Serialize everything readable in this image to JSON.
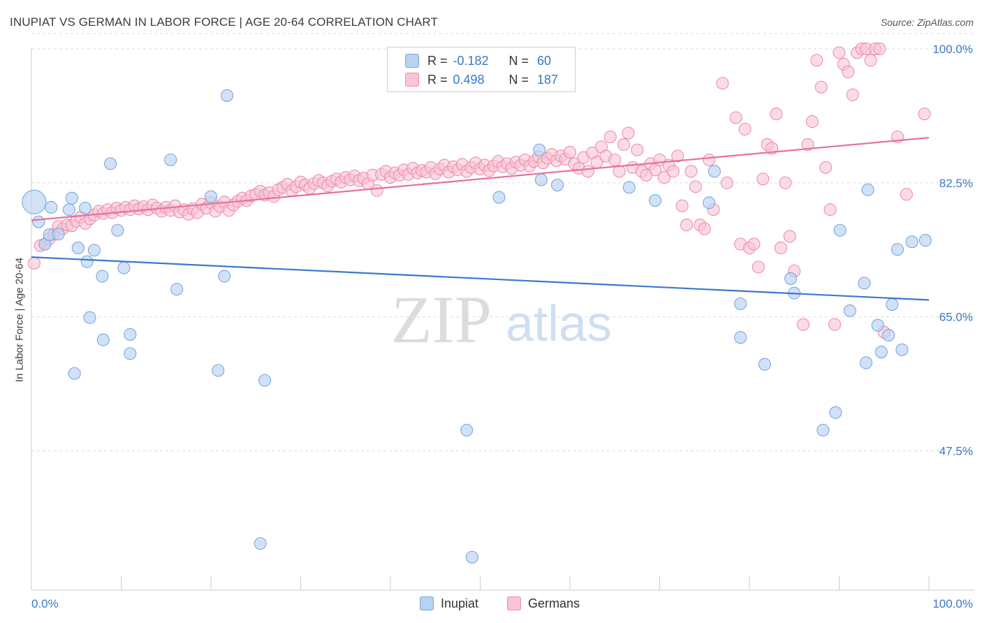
{
  "title": "INUPIAT VS GERMAN IN LABOR FORCE | AGE 20-64 CORRELATION CHART",
  "source": "Source: ZipAtlas.com",
  "watermark": {
    "zip": "ZIP",
    "atlas": "atlas"
  },
  "colors": {
    "inupiat_fill": "#b8d2f3",
    "inupiat_stroke": "#7aa7e0",
    "inupiat_line": "#3a78d0",
    "german_fill": "#f9c4d3",
    "german_stroke": "#ec8fab",
    "german_line": "#e8709a",
    "tick_label": "#3a78c8",
    "grid": "#dcdcdc"
  },
  "stats": {
    "inupiat": {
      "r_label": "R =",
      "r_value": "-0.182",
      "n_label": "N =",
      "n_value": "60"
    },
    "german": {
      "r_label": "R =",
      "r_value": "0.498",
      "n_label": "N =",
      "n_value": "187"
    }
  },
  "legend": {
    "inupiat": "Inupiat",
    "german": "Germans"
  },
  "chart_data": {
    "type": "scatter",
    "title": "INUPIAT VS GERMAN IN LABOR FORCE | AGE 20-64 CORRELATION CHART",
    "xlabel": "",
    "ylabel": "In Labor Force | Age 20-64",
    "xlim": [
      0,
      100
    ],
    "ylim": [
      29.3,
      102
    ],
    "x_tick_labels": [
      "0.0%",
      "100.0%"
    ],
    "y_ticks": [
      {
        "value": 100.0,
        "label": "100.0%"
      },
      {
        "value": 82.5,
        "label": "82.5%"
      },
      {
        "value": 65.0,
        "label": "65.0%"
      },
      {
        "value": 47.5,
        "label": "47.5%"
      }
    ],
    "grid": "horizontal dashed",
    "legend_position": "bottom-center",
    "series": [
      {
        "name": "Inupiat",
        "trend": {
          "x0": 0,
          "y0": 72.8,
          "x1": 100,
          "y1": 67.2
        },
        "points": [
          [
            0.3,
            80.0,
            2.2
          ],
          [
            0.8,
            77.4,
            1
          ],
          [
            1.5,
            74.5,
            1
          ],
          [
            2.0,
            75.7,
            1
          ],
          [
            2.2,
            79.3,
            1
          ],
          [
            3.0,
            75.8,
            1
          ],
          [
            4.2,
            79.0,
            1
          ],
          [
            4.5,
            80.5,
            1
          ],
          [
            4.8,
            57.6,
            1
          ],
          [
            5.2,
            74.0,
            1
          ],
          [
            6.0,
            79.2,
            1
          ],
          [
            6.2,
            72.2,
            1
          ],
          [
            6.5,
            64.9,
            1
          ],
          [
            7.0,
            73.7,
            1
          ],
          [
            7.9,
            70.3,
            1
          ],
          [
            8.0,
            62.0,
            1
          ],
          [
            8.8,
            85.0,
            1
          ],
          [
            9.6,
            76.3,
            1
          ],
          [
            10.3,
            71.4,
            1
          ],
          [
            11.0,
            62.7,
            1
          ],
          [
            11.0,
            60.2,
            1
          ],
          [
            15.5,
            85.5,
            1
          ],
          [
            16.2,
            68.6,
            1
          ],
          [
            20.0,
            80.7,
            1
          ],
          [
            20.8,
            58.0,
            1
          ],
          [
            21.5,
            70.3,
            1
          ],
          [
            21.8,
            93.9,
            1
          ],
          [
            25.5,
            35.4,
            1
          ],
          [
            26.0,
            56.7,
            1
          ],
          [
            48.5,
            50.2,
            1
          ],
          [
            49.1,
            33.6,
            1
          ],
          [
            52.1,
            80.6,
            1
          ],
          [
            56.6,
            86.8,
            1
          ],
          [
            56.8,
            82.9,
            1
          ],
          [
            58.6,
            82.2,
            1
          ],
          [
            66.6,
            81.9,
            1
          ],
          [
            69.5,
            80.2,
            1
          ],
          [
            75.5,
            79.9,
            1
          ],
          [
            76.1,
            84.0,
            1
          ],
          [
            79.0,
            66.7,
            1
          ],
          [
            79.0,
            62.3,
            1
          ],
          [
            81.7,
            58.8,
            1
          ],
          [
            84.6,
            70.0,
            1
          ],
          [
            85.0,
            68.1,
            1
          ],
          [
            88.2,
            50.2,
            1
          ],
          [
            89.6,
            52.5,
            1
          ],
          [
            90.1,
            76.3,
            1
          ],
          [
            91.2,
            65.8,
            1
          ],
          [
            92.8,
            69.4,
            1
          ],
          [
            93.0,
            59.0,
            1
          ],
          [
            93.2,
            81.6,
            1
          ],
          [
            94.3,
            63.9,
            1
          ],
          [
            94.7,
            60.4,
            1
          ],
          [
            95.5,
            62.6,
            1
          ],
          [
            95.9,
            66.6,
            1
          ],
          [
            96.5,
            73.8,
            1
          ],
          [
            97.0,
            60.7,
            1
          ],
          [
            98.1,
            74.8,
            1
          ],
          [
            99.6,
            75.0,
            1
          ]
        ]
      },
      {
        "name": "Germans",
        "trend": {
          "x0": 0,
          "y0": 77.6,
          "x1": 100,
          "y1": 88.4
        },
        "points": [
          [
            0.3,
            72.0
          ],
          [
            1.0,
            74.3
          ],
          [
            1.5,
            74.5
          ],
          [
            2.0,
            75.2
          ],
          [
            2.5,
            75.8
          ],
          [
            3.0,
            76.8
          ],
          [
            3.5,
            76.5
          ],
          [
            4.0,
            77.0
          ],
          [
            4.5,
            76.9
          ],
          [
            5.0,
            77.5
          ],
          [
            5.5,
            78.0
          ],
          [
            6.0,
            77.2
          ],
          [
            6.5,
            77.8
          ],
          [
            7.0,
            78.3
          ],
          [
            7.5,
            78.8
          ],
          [
            8.0,
            78.5
          ],
          [
            8.5,
            79.0
          ],
          [
            9.0,
            78.6
          ],
          [
            9.5,
            79.2
          ],
          [
            10.0,
            78.9
          ],
          [
            10.5,
            79.3
          ],
          [
            11.0,
            79.0
          ],
          [
            11.5,
            79.5
          ],
          [
            12.0,
            79.1
          ],
          [
            12.5,
            79.4
          ],
          [
            13.0,
            79.0
          ],
          [
            13.5,
            79.6
          ],
          [
            14.0,
            79.2
          ],
          [
            14.5,
            78.8
          ],
          [
            15.0,
            79.3
          ],
          [
            15.5,
            78.9
          ],
          [
            16.0,
            79.5
          ],
          [
            16.5,
            78.7
          ],
          [
            17.0,
            79.0
          ],
          [
            17.5,
            78.4
          ],
          [
            18.0,
            79.1
          ],
          [
            18.5,
            78.6
          ],
          [
            19.0,
            79.7
          ],
          [
            19.5,
            79.2
          ],
          [
            20.0,
            79.9
          ],
          [
            20.5,
            78.8
          ],
          [
            21.0,
            79.4
          ],
          [
            21.5,
            80.0
          ],
          [
            22.0,
            78.9
          ],
          [
            22.5,
            79.6
          ],
          [
            23.0,
            80.1
          ],
          [
            23.5,
            80.5
          ],
          [
            24.0,
            80.2
          ],
          [
            24.5,
            80.8
          ],
          [
            25.0,
            81.0
          ],
          [
            25.5,
            81.4
          ],
          [
            26.0,
            80.9
          ],
          [
            26.5,
            81.2
          ],
          [
            27.0,
            80.7
          ],
          [
            27.5,
            81.6
          ],
          [
            28.0,
            81.9
          ],
          [
            28.5,
            82.3
          ],
          [
            29.0,
            81.5
          ],
          [
            29.5,
            82.0
          ],
          [
            30.0,
            82.6
          ],
          [
            30.5,
            82.2
          ],
          [
            31.0,
            81.8
          ],
          [
            31.5,
            82.4
          ],
          [
            32.0,
            82.8
          ],
          [
            32.5,
            82.5
          ],
          [
            33.0,
            82.1
          ],
          [
            33.5,
            82.7
          ],
          [
            34.0,
            83.0
          ],
          [
            34.5,
            82.6
          ],
          [
            35.0,
            83.2
          ],
          [
            35.5,
            82.9
          ],
          [
            36.0,
            83.4
          ],
          [
            36.5,
            82.8
          ],
          [
            37.0,
            83.1
          ],
          [
            37.5,
            82.4
          ],
          [
            38.0,
            83.5
          ],
          [
            38.5,
            81.5
          ],
          [
            39.0,
            83.6
          ],
          [
            39.5,
            84.0
          ],
          [
            40.0,
            83.2
          ],
          [
            40.5,
            83.8
          ],
          [
            41.0,
            83.5
          ],
          [
            41.5,
            84.2
          ],
          [
            42.0,
            83.6
          ],
          [
            42.5,
            84.4
          ],
          [
            43.0,
            83.8
          ],
          [
            43.5,
            84.1
          ],
          [
            44.0,
            83.9
          ],
          [
            44.5,
            84.5
          ],
          [
            45.0,
            83.7
          ],
          [
            45.5,
            84.3
          ],
          [
            46.0,
            84.8
          ],
          [
            46.5,
            83.9
          ],
          [
            47.0,
            84.6
          ],
          [
            47.5,
            84.2
          ],
          [
            48.0,
            84.9
          ],
          [
            48.5,
            84.0
          ],
          [
            49.0,
            84.5
          ],
          [
            49.5,
            85.1
          ],
          [
            50.0,
            84.3
          ],
          [
            50.5,
            84.8
          ],
          [
            51.0,
            84.1
          ],
          [
            51.5,
            84.7
          ],
          [
            52.0,
            85.3
          ],
          [
            52.5,
            84.6
          ],
          [
            53.0,
            85.0
          ],
          [
            53.5,
            84.4
          ],
          [
            54.0,
            85.2
          ],
          [
            54.5,
            84.8
          ],
          [
            55.0,
            85.5
          ],
          [
            55.5,
            84.7
          ],
          [
            56.0,
            85.3
          ],
          [
            56.5,
            85.9
          ],
          [
            57.0,
            85.1
          ],
          [
            57.5,
            85.7
          ],
          [
            58.0,
            86.2
          ],
          [
            58.5,
            85.4
          ],
          [
            59.0,
            86.0
          ],
          [
            59.5,
            85.6
          ],
          [
            60.0,
            86.5
          ],
          [
            60.5,
            85.0
          ],
          [
            61.0,
            84.4
          ],
          [
            61.5,
            85.8
          ],
          [
            62.0,
            84.0
          ],
          [
            62.5,
            86.4
          ],
          [
            63.0,
            85.2
          ],
          [
            63.5,
            87.2
          ],
          [
            64.0,
            86.0
          ],
          [
            64.5,
            88.5
          ],
          [
            65.0,
            85.5
          ],
          [
            65.5,
            84.0
          ],
          [
            66.0,
            87.5
          ],
          [
            66.5,
            89.0
          ],
          [
            67.0,
            84.5
          ],
          [
            67.5,
            86.8
          ],
          [
            68.0,
            84.0
          ],
          [
            68.5,
            83.5
          ],
          [
            69.0,
            85.0
          ],
          [
            69.5,
            84.2
          ],
          [
            70.0,
            85.5
          ],
          [
            70.5,
            83.2
          ],
          [
            71.0,
            84.8
          ],
          [
            71.5,
            84.0
          ],
          [
            72.0,
            86.0
          ],
          [
            72.5,
            79.5
          ],
          [
            73.0,
            77.0
          ],
          [
            73.5,
            84.0
          ],
          [
            74.0,
            82.0
          ],
          [
            74.5,
            77.0
          ],
          [
            75.0,
            76.5
          ],
          [
            75.5,
            85.5
          ],
          [
            76.0,
            79.0
          ],
          [
            77.0,
            95.5
          ],
          [
            77.5,
            82.5
          ],
          [
            78.5,
            91.0
          ],
          [
            79.0,
            74.5
          ],
          [
            79.5,
            89.5
          ],
          [
            80.0,
            74.0
          ],
          [
            80.5,
            74.5
          ],
          [
            81.0,
            71.5
          ],
          [
            81.5,
            83.0
          ],
          [
            82.0,
            87.5
          ],
          [
            82.5,
            87.0
          ],
          [
            83.0,
            91.5
          ],
          [
            83.5,
            74.0
          ],
          [
            84.0,
            82.5
          ],
          [
            84.5,
            75.5
          ],
          [
            85.0,
            71.0
          ],
          [
            86.0,
            64.0
          ],
          [
            86.5,
            87.5
          ],
          [
            87.0,
            90.5
          ],
          [
            87.5,
            98.5
          ],
          [
            88.0,
            95.0
          ],
          [
            88.5,
            84.5
          ],
          [
            89.0,
            79.0
          ],
          [
            89.5,
            64.0
          ],
          [
            90.0,
            99.5
          ],
          [
            90.5,
            98.0
          ],
          [
            91.0,
            97.0
          ],
          [
            91.5,
            94.0
          ],
          [
            92.0,
            99.5
          ],
          [
            92.5,
            100.0
          ],
          [
            93.0,
            100.0
          ],
          [
            93.5,
            98.5
          ],
          [
            94.0,
            100.0
          ],
          [
            94.5,
            100.0
          ],
          [
            95.0,
            63.0
          ],
          [
            96.5,
            88.5
          ],
          [
            97.5,
            81.0
          ],
          [
            99.5,
            91.5
          ]
        ]
      }
    ]
  }
}
